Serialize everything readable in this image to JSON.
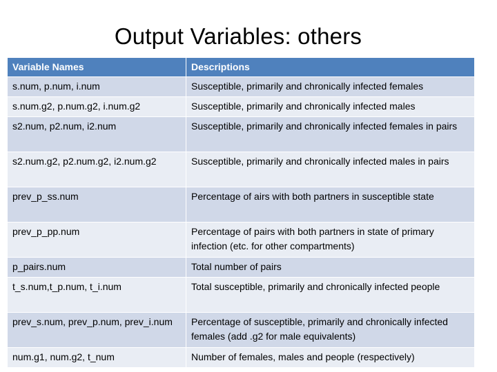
{
  "title": "Output Variables: others",
  "table": {
    "headers": [
      "Variable Names",
      "Descriptions"
    ],
    "rows": [
      {
        "name": "s.num, p.num, i.num",
        "desc": "Susceptible, primarily and chronically infected females"
      },
      {
        "name": "s.num.g2, p.num.g2, i.num.g2",
        "desc": "Susceptible, primarily and chronically infected males"
      },
      {
        "name": "s2.num, p2.num, i2.num",
        "desc": "Susceptible, primarily and chronically infected females in pairs"
      },
      {
        "name": "s2.num.g2, p2.num.g2, i2.num.g2",
        "desc": "Susceptible, primarily and chronically infected males in pairs"
      },
      {
        "name": "prev_p_ss.num",
        "desc": "Percentage of airs with both partners in susceptible state"
      },
      {
        "name": "prev_p_pp.num",
        "desc": "Percentage of pairs with both partners in state of primary infection (etc. for other compartments)"
      },
      {
        "name": "p_pairs.num",
        "desc": "Total number of pairs"
      },
      {
        "name": "t_s.num,t_p.num, t_i.num",
        "desc": "Total susceptible, primarily and chronically infected people"
      },
      {
        "name": "prev_s.num, prev_p.num, prev_i.num",
        "desc": "Percentage of susceptible, primarily and chronically infected females (add .g2 for male equivalents)"
      },
      {
        "name": "num.g1, num.g2, t_num",
        "desc": "Number of females, males and people (respectively)"
      }
    ]
  },
  "colors": {
    "header_bg": "#4f81bd",
    "row_odd": "#d0d8e8",
    "row_even": "#e9edf4"
  }
}
